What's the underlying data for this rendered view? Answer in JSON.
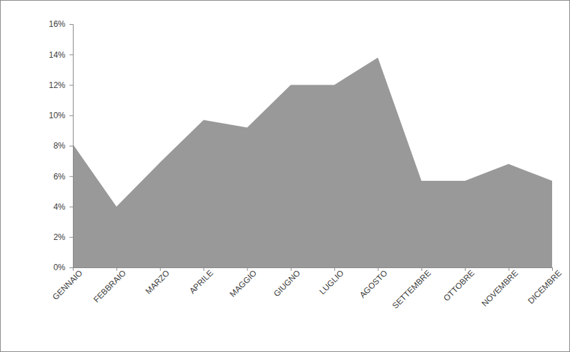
{
  "chart_data": {
    "type": "area",
    "categories": [
      "GENNAIO",
      "FEBBRAIO",
      "MARZO",
      "APRILE",
      "MAGGIO",
      "GIUGNO",
      "LUGLIO",
      "AGOSTO",
      "SETTEMBRE",
      "OTTOBRE",
      "NOVEMBRE",
      "DICEMBRE"
    ],
    "values": [
      8.1,
      4.0,
      6.9,
      9.7,
      9.2,
      12.0,
      12.0,
      13.8,
      5.7,
      5.7,
      6.8,
      5.7
    ],
    "color": "#999999",
    "ylim": [
      0,
      16
    ],
    "yticks": [
      {
        "value": 0,
        "label": "0%"
      },
      {
        "value": 2,
        "label": "2%"
      },
      {
        "value": 4,
        "label": "4%"
      },
      {
        "value": 6,
        "label": "6%"
      },
      {
        "value": 8,
        "label": "8%"
      },
      {
        "value": 10,
        "label": "10%"
      },
      {
        "value": 12,
        "label": "12%"
      },
      {
        "value": 14,
        "label": "14%"
      },
      {
        "value": 16,
        "label": "16%"
      }
    ],
    "grid": false
  }
}
